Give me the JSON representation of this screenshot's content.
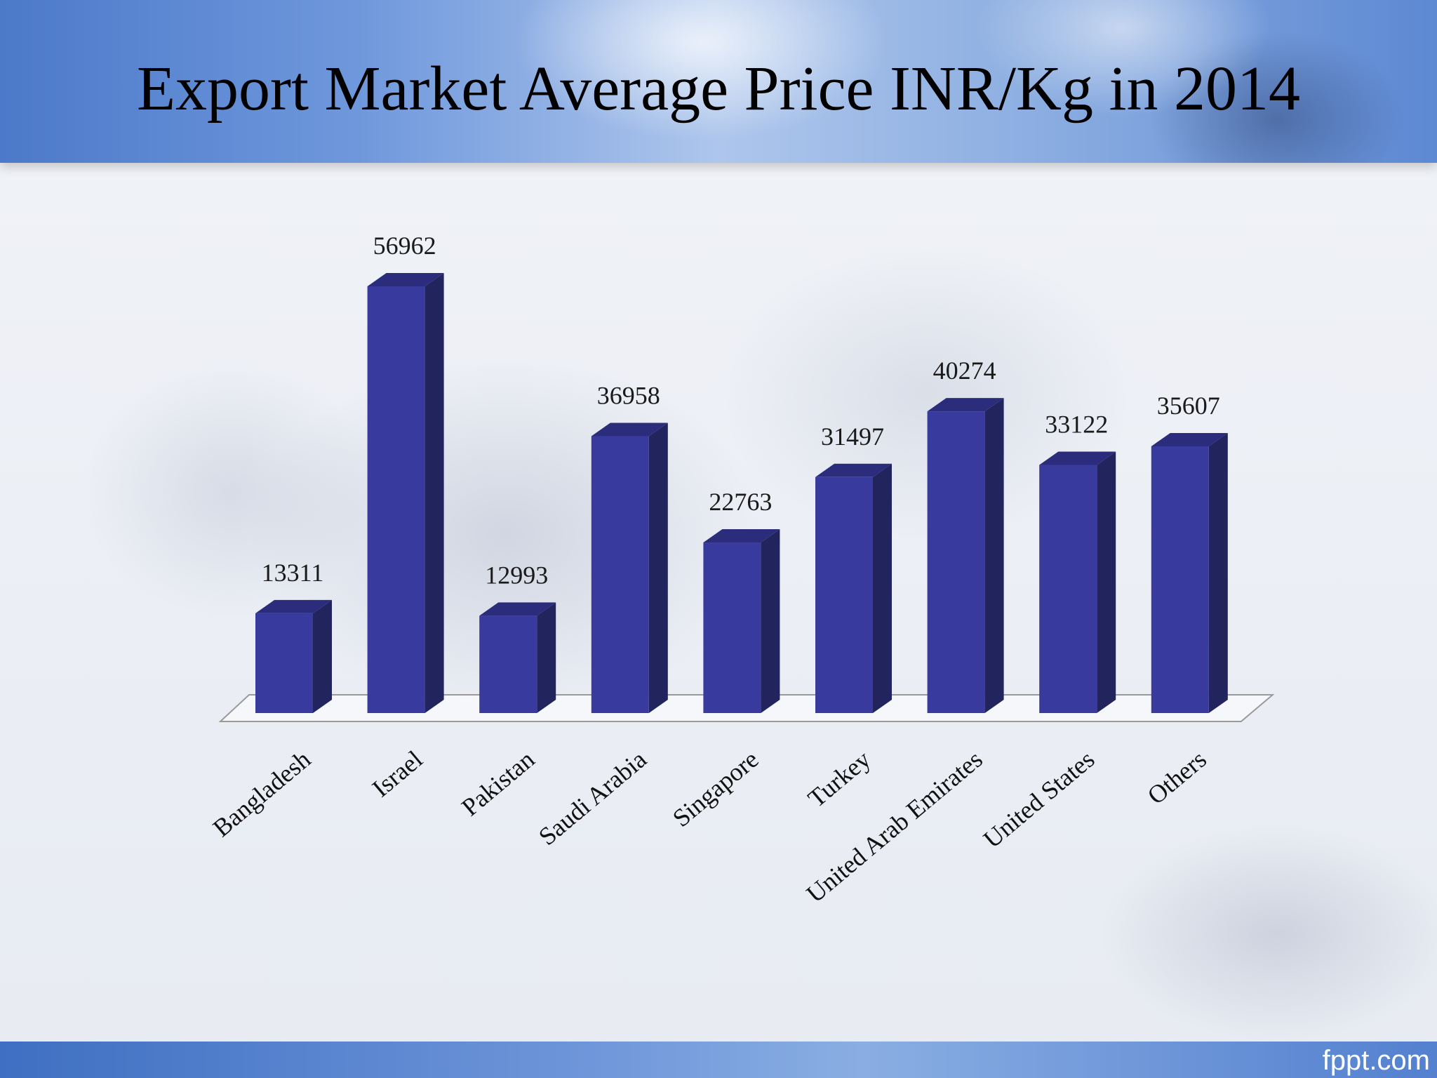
{
  "slide": {
    "title": "Export Market Average Price INR/Kg in 2014",
    "brand": "fppt.com"
  },
  "chart_data": {
    "type": "bar",
    "style": "3d-column",
    "title": "Export Market Average Price INR/Kg in 2014",
    "categories": [
      "Bangladesh",
      "Israel",
      "Pakistan",
      "Saudi Arabia",
      "Singapore",
      "Turkey",
      "United Arab Emirates",
      "United States",
      "Others"
    ],
    "series": [
      {
        "values": [
          13311,
          56962,
          12993,
          36958,
          22763,
          31497,
          40274,
          33122,
          35607
        ],
        "color": "#383a9e"
      }
    ],
    "data_labels": [
      "13311",
      "56962",
      "12993",
      "36958",
      "22763",
      "31497",
      "40274",
      "33122",
      "35607"
    ],
    "ylim": [
      0,
      56962
    ],
    "grid": false,
    "legend": "none",
    "colors": {
      "bar_front": "#383a9e",
      "bar_side": "#22245e",
      "bar_top": "#2b2d7c"
    }
  }
}
